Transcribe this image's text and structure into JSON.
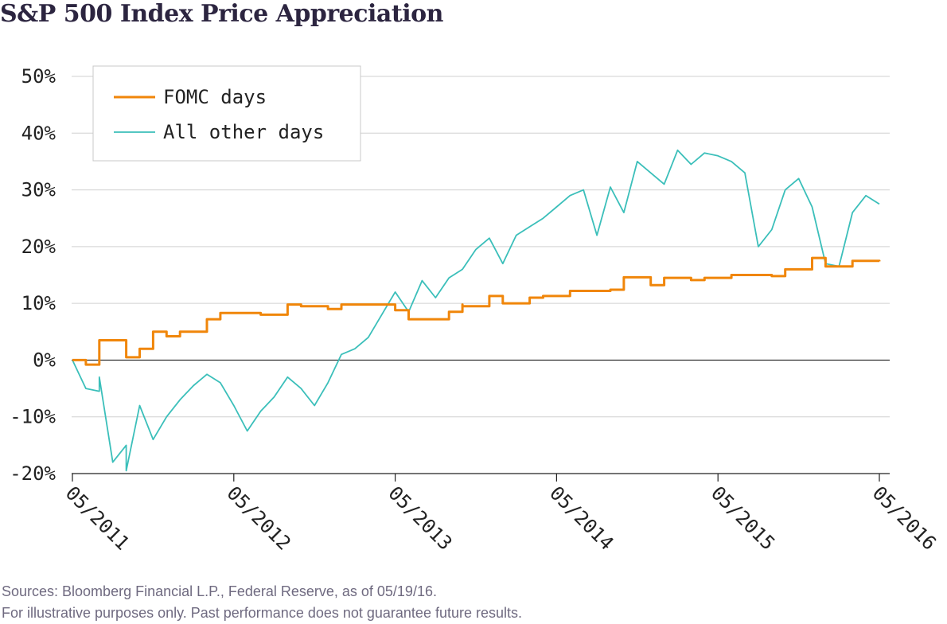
{
  "chart_data": {
    "type": "line",
    "title": "S&P 500 Index Price Appreciation",
    "xlabel": "",
    "ylabel": "",
    "ylim": [
      -20,
      50
    ],
    "x_range": [
      "05/2011",
      "05/2016"
    ],
    "x_ticks": [
      "05/2011",
      "05/2012",
      "05/2013",
      "05/2014",
      "05/2015",
      "05/2016"
    ],
    "y_ticks": [
      "-20%",
      "-10%",
      "0%",
      "10%",
      "20%",
      "30%",
      "40%",
      "50%"
    ],
    "grid": true,
    "legend_position": "top-left",
    "series": [
      {
        "name": "FOMC days",
        "color": "#f0860a",
        "step": true,
        "points": [
          [
            "05/2011",
            0.0
          ],
          [
            "06/2011",
            -0.8
          ],
          [
            "07/2011",
            3.5
          ],
          [
            "09/2011",
            0.5
          ],
          [
            "10/2011",
            2.0
          ],
          [
            "11/2011",
            5.0
          ],
          [
            "12/2011",
            4.2
          ],
          [
            "01/2012",
            5.0
          ],
          [
            "03/2012",
            7.2
          ],
          [
            "04/2012",
            8.3
          ],
          [
            "07/2012",
            8.0
          ],
          [
            "09/2012",
            9.8
          ],
          [
            "10/2012",
            9.5
          ],
          [
            "12/2012",
            9.0
          ],
          [
            "01/2013",
            9.8
          ],
          [
            "03/2013",
            9.8
          ],
          [
            "05/2013",
            8.8
          ],
          [
            "06/2013",
            7.2
          ],
          [
            "09/2013",
            8.5
          ],
          [
            "10/2013",
            9.8
          ],
          [
            "10/2013",
            9.5
          ],
          [
            "12/2013",
            11.3
          ],
          [
            "01/2014",
            10.0
          ],
          [
            "03/2014",
            11.0
          ],
          [
            "04/2014",
            11.3
          ],
          [
            "06/2014",
            12.2
          ],
          [
            "07/2014",
            12.2
          ],
          [
            "09/2014",
            12.4
          ],
          [
            "10/2014",
            14.6
          ],
          [
            "12/2014",
            13.2
          ],
          [
            "01/2015",
            14.5
          ],
          [
            "03/2015",
            14.1
          ],
          [
            "04/2015",
            14.5
          ],
          [
            "06/2015",
            15.0
          ],
          [
            "07/2015",
            15.0
          ],
          [
            "09/2015",
            14.8
          ],
          [
            "10/2015",
            16.0
          ],
          [
            "12/2015",
            18.0
          ],
          [
            "01/2016",
            16.5
          ],
          [
            "03/2016",
            17.5
          ],
          [
            "05/2016",
            17.4
          ]
        ]
      },
      {
        "name": "All other days",
        "color": "#3bbfba",
        "step": false,
        "points": [
          [
            "05/2011",
            0.0
          ],
          [
            "06/2011",
            -5.0
          ],
          [
            "07/2011",
            -5.5
          ],
          [
            "07/2011",
            -3.0
          ],
          [
            "08/2011",
            -18.0
          ],
          [
            "09/2011",
            -15.0
          ],
          [
            "09/2011",
            -19.5
          ],
          [
            "10/2011",
            -8.0
          ],
          [
            "11/2011",
            -14.0
          ],
          [
            "12/2011",
            -10.0
          ],
          [
            "01/2012",
            -7.0
          ],
          [
            "02/2012",
            -4.5
          ],
          [
            "03/2012",
            -2.5
          ],
          [
            "04/2012",
            -4.0
          ],
          [
            "05/2012",
            -8.0
          ],
          [
            "06/2012",
            -12.5
          ],
          [
            "07/2012",
            -9.0
          ],
          [
            "08/2012",
            -6.5
          ],
          [
            "09/2012",
            -3.0
          ],
          [
            "10/2012",
            -5.0
          ],
          [
            "11/2012",
            -8.0
          ],
          [
            "12/2012",
            -4.0
          ],
          [
            "01/2013",
            1.0
          ],
          [
            "02/2013",
            2.0
          ],
          [
            "03/2013",
            4.0
          ],
          [
            "04/2013",
            8.0
          ],
          [
            "05/2013",
            12.0
          ],
          [
            "06/2013",
            8.5
          ],
          [
            "07/2013",
            14.0
          ],
          [
            "08/2013",
            11.0
          ],
          [
            "09/2013",
            14.5
          ],
          [
            "10/2013",
            16.0
          ],
          [
            "11/2013",
            19.5
          ],
          [
            "12/2013",
            21.5
          ],
          [
            "01/2014",
            17.0
          ],
          [
            "02/2014",
            22.0
          ],
          [
            "03/2014",
            23.5
          ],
          [
            "04/2014",
            25.0
          ],
          [
            "05/2014",
            27.0
          ],
          [
            "06/2014",
            29.0
          ],
          [
            "07/2014",
            30.0
          ],
          [
            "08/2014",
            22.0
          ],
          [
            "09/2014",
            30.5
          ],
          [
            "10/2014",
            26.0
          ],
          [
            "11/2014",
            35.0
          ],
          [
            "12/2014",
            33.0
          ],
          [
            "01/2015",
            31.0
          ],
          [
            "02/2015",
            37.0
          ],
          [
            "03/2015",
            34.5
          ],
          [
            "04/2015",
            36.5
          ],
          [
            "05/2015",
            36.0
          ],
          [
            "06/2015",
            35.0
          ],
          [
            "07/2015",
            33.0
          ],
          [
            "08/2015",
            20.0
          ],
          [
            "09/2015",
            23.0
          ],
          [
            "10/2015",
            30.0
          ],
          [
            "11/2015",
            32.0
          ],
          [
            "12/2015",
            27.0
          ],
          [
            "01/2016",
            17.0
          ],
          [
            "02/2016",
            16.5
          ],
          [
            "03/2016",
            26.0
          ],
          [
            "04/2016",
            29.0
          ],
          [
            "05/2016",
            27.5
          ]
        ]
      }
    ]
  },
  "footer": {
    "source": "Sources: Bloomberg Financial L.P., Federal Reserve, as of 05/19/16.",
    "disclaimer": "For illustrative purposes only. Past performance does not guarantee future results."
  }
}
